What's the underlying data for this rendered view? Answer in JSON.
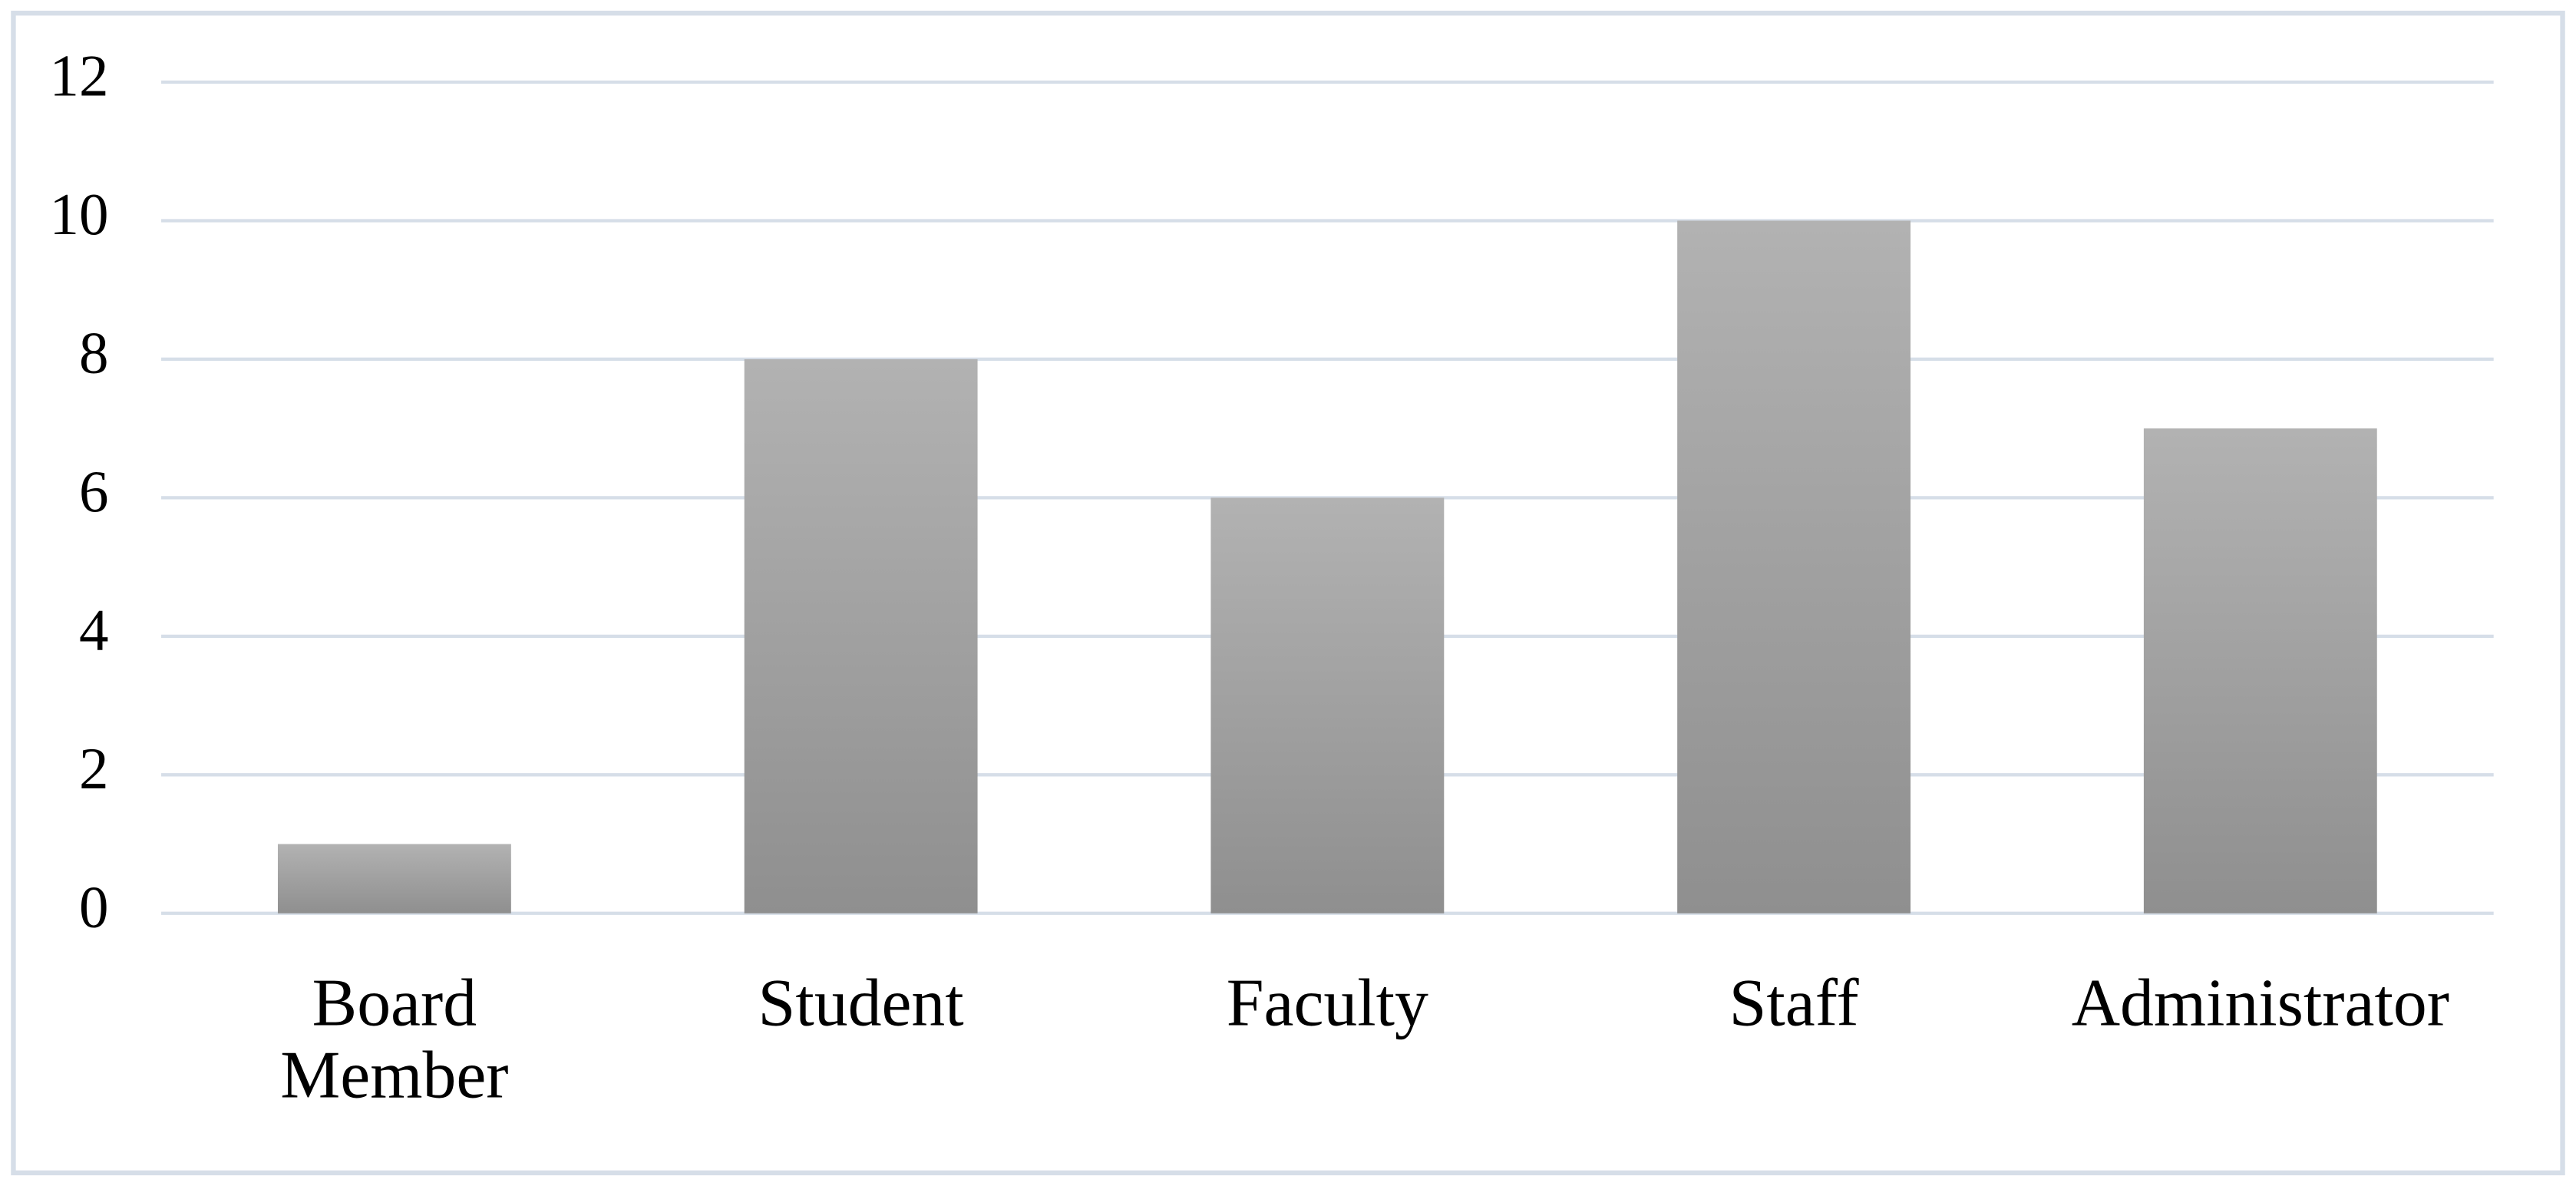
{
  "chart_data": {
    "type": "bar",
    "categories": [
      "Board Member",
      "Student",
      "Faculty",
      "Staff",
      "Administrator"
    ],
    "values": [
      1,
      8,
      6,
      10,
      7
    ],
    "color": "#a6a6a6",
    "ylim": [
      0,
      12
    ],
    "yticks": [
      0,
      2,
      4,
      6,
      8,
      10,
      12
    ],
    "grid": true
  }
}
